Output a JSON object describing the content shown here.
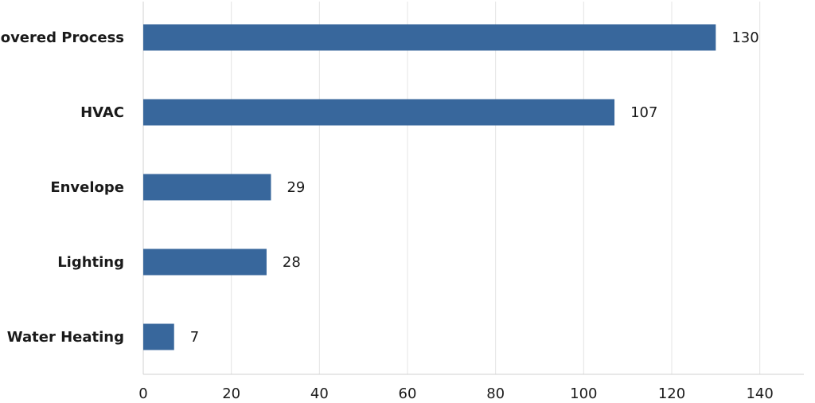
{
  "chart_data": {
    "type": "bar",
    "orientation": "horizontal",
    "categories": [
      "Covered Process",
      "HVAC",
      "Envelope",
      "Lighting",
      "Water Heating"
    ],
    "values": [
      130,
      107,
      29,
      28,
      7
    ],
    "title": "",
    "xlabel": "",
    "ylabel": "",
    "xlim": [
      0,
      150
    ],
    "xticks": [
      0,
      20,
      40,
      60,
      80,
      100,
      120,
      140
    ],
    "grid": true,
    "legend": "none",
    "bar_color": "#38679c"
  }
}
